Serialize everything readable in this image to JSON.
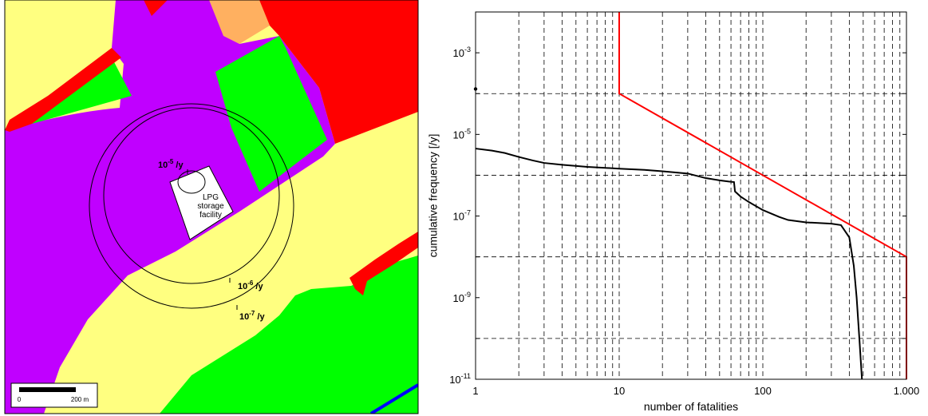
{
  "map": {
    "colors": {
      "residential": "#c000ff",
      "industrial": "#ff0000",
      "recreation": "#00ff00",
      "agricultural": "#ffff80",
      "commercial": "#ffb060",
      "water": "#0000ff",
      "contour": "#000000"
    },
    "facility_label_line1": "LPG",
    "facility_label_line2": "storage",
    "facility_label_line3": "facility",
    "contour_labels": [
      {
        "base": "10",
        "exp": "-5",
        "unit": " /y"
      },
      {
        "base": "10",
        "exp": "-6",
        "unit": " /y"
      },
      {
        "base": "10",
        "exp": "-7",
        "unit": " /y"
      }
    ],
    "scale_bar": {
      "start_label": "0",
      "end_label": "200 m"
    }
  },
  "chart_data": {
    "type": "line",
    "xlabel": "number of fatalities",
    "ylabel": "cumulative frequency [/y]",
    "x_scale": "log",
    "y_scale": "log",
    "xlim": [
      1,
      1000
    ],
    "ylim": [
      1e-11,
      0.01
    ],
    "grid": true,
    "x_ticks": [
      {
        "value": 1,
        "label": "1"
      },
      {
        "value": 10,
        "label": "10"
      },
      {
        "value": 100,
        "label": "100"
      },
      {
        "value": 1000,
        "label": "1.000"
      }
    ],
    "y_ticks": [
      {
        "value": 1e-11,
        "base": "10",
        "exp": "-11"
      },
      {
        "value": 1e-09,
        "base": "10",
        "exp": "-9"
      },
      {
        "value": 1e-07,
        "base": "10",
        "exp": "-7"
      },
      {
        "value": 1e-05,
        "base": "10",
        "exp": "-5"
      },
      {
        "value": 0.001,
        "base": "10",
        "exp": "-3"
      }
    ],
    "series": [
      {
        "color": "#000000",
        "points": [
          [
            1,
            4.5e-06
          ],
          [
            1.3,
            4e-06
          ],
          [
            1.6,
            3.5e-06
          ],
          [
            2,
            2.8e-06
          ],
          [
            2.5,
            2.3e-06
          ],
          [
            3,
            2e-06
          ],
          [
            4,
            1.8e-06
          ],
          [
            6,
            1.6e-06
          ],
          [
            10,
            1.45e-06
          ],
          [
            15,
            1.35e-06
          ],
          [
            20,
            1.25e-06
          ],
          [
            30,
            1.1e-06
          ],
          [
            40,
            8.5e-07
          ],
          [
            50,
            7.5e-07
          ],
          [
            58,
            7e-07
          ],
          [
            63,
            6.8e-07
          ],
          [
            64,
            4e-07
          ],
          [
            70,
            3e-07
          ],
          [
            80,
            2.2e-07
          ],
          [
            100,
            1.4e-07
          ],
          [
            130,
            9.5e-08
          ],
          [
            150,
            8e-08
          ],
          [
            200,
            7e-08
          ],
          [
            300,
            6.5e-08
          ],
          [
            350,
            6e-08
          ],
          [
            400,
            3e-08
          ],
          [
            430,
            6e-09
          ],
          [
            450,
            1e-09
          ],
          [
            470,
            1e-10
          ],
          [
            490,
            1e-11
          ]
        ]
      },
      {
        "color": "#ff0000",
        "points": [
          [
            10,
            0.01
          ],
          [
            10,
            0.0001
          ],
          [
            1000,
            1e-08
          ],
          [
            1000,
            1e-11
          ]
        ]
      },
      {
        "color": "#000000",
        "marker_only": true,
        "points": [
          [
            1,
            0.00013
          ]
        ]
      }
    ]
  }
}
